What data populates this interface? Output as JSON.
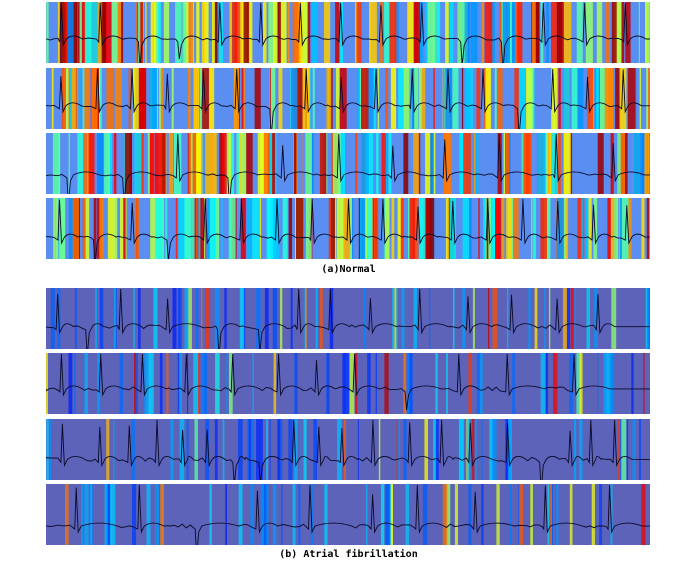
{
  "figure": {
    "panels": [
      {
        "caption": "(a)Normal",
        "class": "normal",
        "strips": [
          {
            "id": "n1",
            "beats": 15,
            "seed": 11
          },
          {
            "id": "n2",
            "beats": 17,
            "seed": 23
          },
          {
            "id": "n3",
            "beats": 11,
            "seed": 37
          },
          {
            "id": "n4",
            "beats": 17,
            "seed": 41
          }
        ]
      },
      {
        "caption": "(b) Atrial fibrillation",
        "class": "af",
        "strips": [
          {
            "id": "a1",
            "beats": 14,
            "seed": 53
          },
          {
            "id": "a2",
            "beats": 12,
            "seed": 67
          },
          {
            "id": "a3",
            "beats": 20,
            "seed": 71
          },
          {
            "id": "a4",
            "beats": 10,
            "seed": 89
          }
        ]
      }
    ],
    "colormap": "jet",
    "trace_color": "#0a0a2a"
  }
}
